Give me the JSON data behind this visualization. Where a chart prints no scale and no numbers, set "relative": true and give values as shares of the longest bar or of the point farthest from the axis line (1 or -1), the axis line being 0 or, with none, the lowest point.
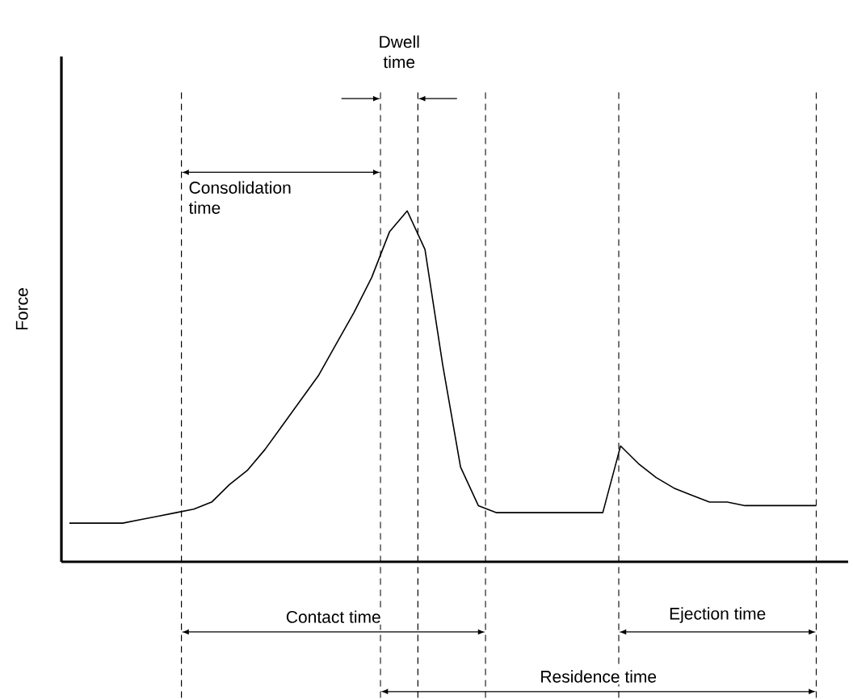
{
  "chart_data": {
    "type": "line",
    "relative": true,
    "ylabel": "Force",
    "color": "#000000",
    "line_style": "solid",
    "categories": [
      null,
      null,
      null,
      null,
      null,
      null,
      null,
      null,
      null,
      null,
      null,
      null,
      null,
      null,
      null,
      null,
      null,
      null,
      null,
      null,
      null,
      null,
      null,
      null,
      null,
      null,
      null,
      null,
      null,
      null,
      null,
      null,
      null,
      null,
      null,
      null,
      null,
      null,
      null,
      null,
      null,
      null,
      null
    ],
    "values": [
      0.11,
      0.11,
      0.11,
      0.11,
      0.12,
      0.13,
      0.14,
      0.15,
      0.17,
      0.22,
      0.26,
      0.32,
      0.39,
      0.46,
      0.53,
      0.62,
      0.71,
      0.81,
      0.94,
      1.0,
      0.89,
      0.56,
      0.27,
      0.16,
      0.14,
      0.14,
      0.14,
      0.14,
      0.14,
      0.14,
      0.14,
      0.33,
      0.28,
      0.24,
      0.21,
      0.19,
      0.17,
      0.17,
      0.16,
      0.16,
      0.16,
      0.16,
      0.16
    ],
    "annotations": [
      "Dwell time",
      "Consolidation time",
      "Contact time",
      "Ejection time",
      "Residence time"
    ]
  }
}
